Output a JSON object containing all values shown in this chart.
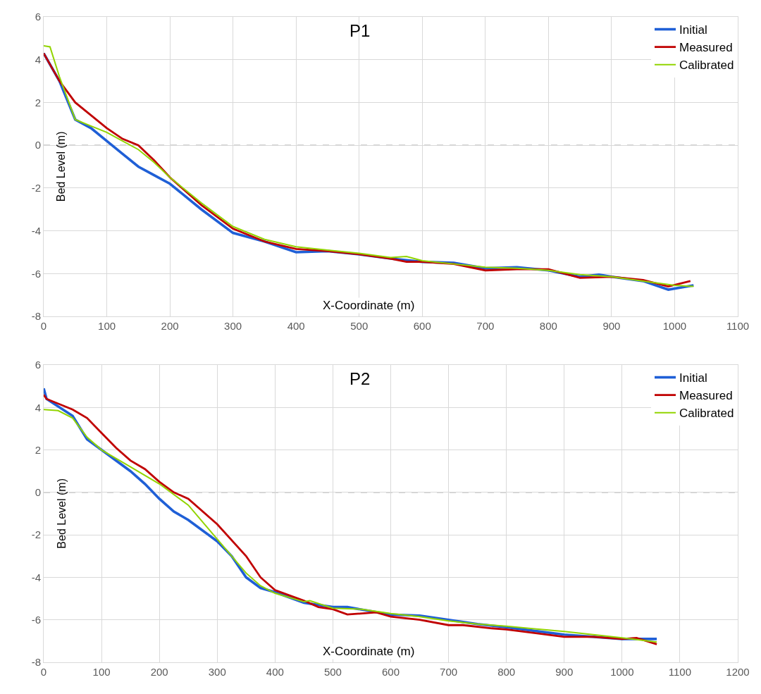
{
  "chart_data": [
    {
      "type": "line",
      "title": "P1",
      "xlabel": "X-Coordinate (m)",
      "ylabel": "Bed Level (m)",
      "xlim": [
        0,
        1100
      ],
      "xticks": [
        0,
        100,
        200,
        300,
        400,
        500,
        600,
        700,
        800,
        900,
        1000,
        1100
      ],
      "ylim": [
        -8,
        6
      ],
      "yticks": [
        -8,
        -6,
        -4,
        -2,
        0,
        2,
        4,
        6
      ],
      "grid": true,
      "legend": "top right",
      "line_style": "solid",
      "marker": "none",
      "ref_lines": [
        {
          "axis": "y",
          "value": 0,
          "color": "#a6a6a6",
          "line_style": "dashed"
        }
      ],
      "series": [
        {
          "name": "Initial",
          "color": "#1f5fd6",
          "x": [
            0,
            25,
            50,
            75,
            100,
            125,
            150,
            175,
            200,
            250,
            300,
            350,
            400,
            450,
            500,
            550,
            600,
            650,
            700,
            750,
            800,
            850,
            880,
            900,
            950,
            990,
            1030
          ],
          "values": [
            4.3,
            3.0,
            1.2,
            0.8,
            0.2,
            -0.4,
            -1.0,
            -1.4,
            -1.8,
            -3.0,
            -4.1,
            -4.5,
            -5.0,
            -4.95,
            -5.1,
            -5.3,
            -5.45,
            -5.5,
            -5.75,
            -5.7,
            -5.85,
            -6.15,
            -6.05,
            -6.15,
            -6.35,
            -6.75,
            -6.55
          ]
        },
        {
          "name": "Measured",
          "color": "#c00000",
          "x": [
            0,
            25,
            50,
            75,
            100,
            125,
            150,
            175,
            200,
            250,
            300,
            350,
            400,
            450,
            500,
            550,
            575,
            600,
            650,
            700,
            750,
            800,
            850,
            900,
            950,
            990,
            1025
          ],
          "values": [
            4.3,
            3.0,
            2.0,
            1.4,
            0.8,
            0.3,
            0.0,
            -0.7,
            -1.5,
            -2.8,
            -3.9,
            -4.5,
            -4.85,
            -4.95,
            -5.1,
            -5.3,
            -5.45,
            -5.45,
            -5.55,
            -5.85,
            -5.8,
            -5.8,
            -6.2,
            -6.15,
            -6.3,
            -6.6,
            -6.35
          ]
        },
        {
          "name": "Calibrated",
          "color": "#92d400",
          "x": [
            0,
            10,
            25,
            50,
            75,
            100,
            125,
            150,
            175,
            200,
            250,
            300,
            350,
            400,
            450,
            500,
            550,
            575,
            600,
            650,
            700,
            750,
            800,
            850,
            900,
            950,
            1000,
            1030
          ],
          "values": [
            4.65,
            4.6,
            3.2,
            1.2,
            0.9,
            0.6,
            0.2,
            -0.2,
            -0.8,
            -1.5,
            -2.7,
            -3.8,
            -4.4,
            -4.75,
            -4.9,
            -5.05,
            -5.25,
            -5.2,
            -5.4,
            -5.55,
            -5.7,
            -5.75,
            -5.85,
            -6.05,
            -6.15,
            -6.35,
            -6.55,
            -6.6
          ]
        }
      ]
    },
    {
      "type": "line",
      "title": "P2",
      "xlabel": "X-Coordinate (m)",
      "ylabel": "Bed Level (m)",
      "xlim": [
        0,
        1200
      ],
      "xticks": [
        0,
        100,
        200,
        300,
        400,
        500,
        600,
        700,
        800,
        900,
        1000,
        1100,
        1200
      ],
      "ylim": [
        -8,
        6
      ],
      "yticks": [
        -8,
        -6,
        -4,
        -2,
        0,
        2,
        4,
        6
      ],
      "grid": true,
      "legend": "top right",
      "line_style": "solid",
      "marker": "none",
      "ref_lines": [
        {
          "axis": "y",
          "value": 0,
          "color": "#a6a6a6",
          "line_style": "dashed"
        }
      ],
      "series": [
        {
          "name": "Initial",
          "color": "#1f5fd6",
          "x": [
            0,
            5,
            50,
            75,
            100,
            150,
            175,
            200,
            225,
            250,
            300,
            325,
            350,
            375,
            400,
            450,
            500,
            525,
            600,
            650,
            700,
            750,
            800,
            900,
            1000,
            1060
          ],
          "values": [
            4.9,
            4.4,
            3.6,
            2.5,
            2.0,
            1.0,
            0.4,
            -0.3,
            -0.9,
            -1.3,
            -2.3,
            -3.0,
            -4.0,
            -4.5,
            -4.7,
            -5.2,
            -5.4,
            -5.4,
            -5.75,
            -5.8,
            -6.0,
            -6.2,
            -6.35,
            -6.7,
            -6.9,
            -6.9
          ]
        },
        {
          "name": "Measured",
          "color": "#c00000",
          "x": [
            0,
            5,
            50,
            75,
            100,
            125,
            150,
            175,
            200,
            225,
            250,
            300,
            350,
            375,
            400,
            450,
            475,
            500,
            525,
            575,
            600,
            650,
            700,
            725,
            775,
            800,
            900,
            950,
            1000,
            1025,
            1060
          ],
          "values": [
            4.6,
            4.4,
            3.9,
            3.5,
            2.8,
            2.1,
            1.5,
            1.1,
            0.5,
            0.0,
            -0.3,
            -1.5,
            -3.0,
            -4.0,
            -4.6,
            -5.1,
            -5.4,
            -5.5,
            -5.75,
            -5.65,
            -5.85,
            -6.0,
            -6.25,
            -6.25,
            -6.4,
            -6.45,
            -6.8,
            -6.8,
            -6.9,
            -6.85,
            -7.15
          ]
        },
        {
          "name": "Calibrated",
          "color": "#92d400",
          "x": [
            0,
            25,
            50,
            75,
            100,
            150,
            200,
            250,
            300,
            350,
            375,
            400,
            450,
            460,
            500,
            550,
            600,
            650,
            700,
            750,
            800,
            900,
            1000,
            1060
          ],
          "values": [
            3.9,
            3.85,
            3.5,
            2.6,
            2.0,
            1.2,
            0.4,
            -0.6,
            -2.2,
            -3.8,
            -4.4,
            -4.75,
            -5.15,
            -5.1,
            -5.45,
            -5.5,
            -5.7,
            -5.85,
            -6.05,
            -6.2,
            -6.3,
            -6.55,
            -6.85,
            -7.05
          ]
        }
      ]
    }
  ]
}
